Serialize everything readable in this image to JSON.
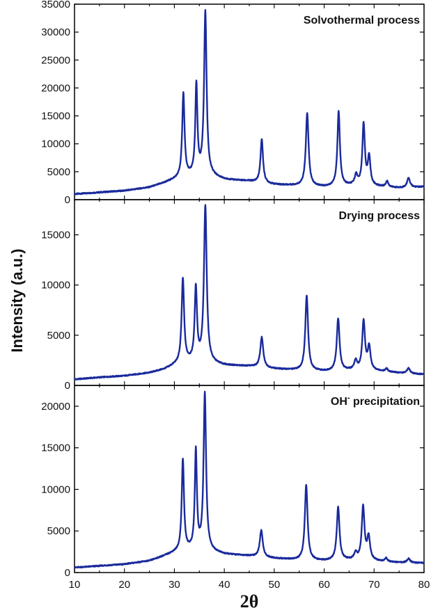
{
  "chart_data": {
    "type": "line",
    "xlabel": "2θ",
    "ylabel": "Intensity (a.u.)",
    "xlim": [
      10,
      80
    ],
    "x_ticks": [
      10,
      20,
      30,
      40,
      50,
      60,
      70,
      80
    ],
    "line_color": "#1a2a9c",
    "grid": false,
    "panels": [
      {
        "title": "Solvothermal process",
        "ylim": [
          0,
          35000
        ],
        "y_ticks": [
          0,
          5000,
          10000,
          15000,
          20000,
          25000,
          30000,
          35000
        ],
        "baseline": [
          [
            10,
            1000
          ],
          [
            15,
            1300
          ],
          [
            20,
            1600
          ],
          [
            25,
            2200
          ],
          [
            28,
            3000
          ],
          [
            30,
            3600
          ],
          [
            33,
            4200
          ],
          [
            36,
            4600
          ],
          [
            40,
            3600
          ],
          [
            45,
            3300
          ],
          [
            50,
            2700
          ],
          [
            55,
            2500
          ],
          [
            60,
            2300
          ],
          [
            65,
            2500
          ],
          [
            70,
            2400
          ],
          [
            75,
            2100
          ],
          [
            80,
            2300
          ]
        ],
        "peaks": [
          [
            31.8,
            15000,
            0.28
          ],
          [
            34.4,
            16000,
            0.25
          ],
          [
            36.2,
            29000,
            0.3
          ],
          [
            47.5,
            7800,
            0.3
          ],
          [
            56.6,
            13000,
            0.33
          ],
          [
            62.9,
            13300,
            0.3
          ],
          [
            66.4,
            1800,
            0.35
          ],
          [
            67.9,
            11000,
            0.3
          ],
          [
            69.0,
            5200,
            0.3
          ],
          [
            72.6,
            1000,
            0.3
          ],
          [
            76.9,
            1700,
            0.35
          ]
        ]
      },
      {
        "title": "Drying process",
        "ylim": [
          0,
          18500
        ],
        "y_ticks": [
          0,
          5000,
          10000,
          15000
        ],
        "baseline": [
          [
            10,
            600
          ],
          [
            15,
            800
          ],
          [
            20,
            950
          ],
          [
            25,
            1250
          ],
          [
            28,
            1600
          ],
          [
            30,
            2000
          ],
          [
            33,
            2300
          ],
          [
            36,
            2300
          ],
          [
            40,
            2000
          ],
          [
            45,
            1900
          ],
          [
            50,
            1650
          ],
          [
            55,
            1500
          ],
          [
            60,
            1400
          ],
          [
            65,
            1500
          ],
          [
            70,
            1450
          ],
          [
            75,
            1250
          ],
          [
            80,
            1100
          ]
        ],
        "peaks": [
          [
            31.7,
            8400,
            0.3
          ],
          [
            34.3,
            7300,
            0.28
          ],
          [
            36.2,
            15500,
            0.33
          ],
          [
            47.5,
            3000,
            0.35
          ],
          [
            56.5,
            7500,
            0.33
          ],
          [
            62.8,
            5200,
            0.33
          ],
          [
            66.3,
            900,
            0.35
          ],
          [
            67.9,
            4900,
            0.33
          ],
          [
            69.0,
            2300,
            0.33
          ],
          [
            72.5,
            300,
            0.3
          ],
          [
            76.9,
            500,
            0.35
          ]
        ]
      },
      {
        "title": "OH- precipitation",
        "ylim": [
          0,
          22500
        ],
        "y_ticks": [
          0,
          5000,
          10000,
          15000,
          20000
        ],
        "baseline": [
          [
            10,
            600
          ],
          [
            15,
            800
          ],
          [
            20,
            1000
          ],
          [
            25,
            1400
          ],
          [
            28,
            2000
          ],
          [
            30,
            2400
          ],
          [
            33,
            2700
          ],
          [
            36,
            2700
          ],
          [
            40,
            2200
          ],
          [
            45,
            2000
          ],
          [
            50,
            1700
          ],
          [
            55,
            1500
          ],
          [
            60,
            1400
          ],
          [
            65,
            1500
          ],
          [
            70,
            1400
          ],
          [
            75,
            1200
          ],
          [
            80,
            1150
          ]
        ],
        "peaks": [
          [
            31.7,
            11000,
            0.27
          ],
          [
            34.3,
            11800,
            0.25
          ],
          [
            36.1,
            18800,
            0.3
          ],
          [
            47.4,
            3200,
            0.35
          ],
          [
            56.4,
            9000,
            0.33
          ],
          [
            62.8,
            6400,
            0.33
          ],
          [
            66.3,
            800,
            0.35
          ],
          [
            67.8,
            6400,
            0.33
          ],
          [
            68.9,
            2800,
            0.33
          ],
          [
            72.4,
            400,
            0.3
          ],
          [
            76.9,
            500,
            0.35
          ]
        ]
      }
    ]
  }
}
